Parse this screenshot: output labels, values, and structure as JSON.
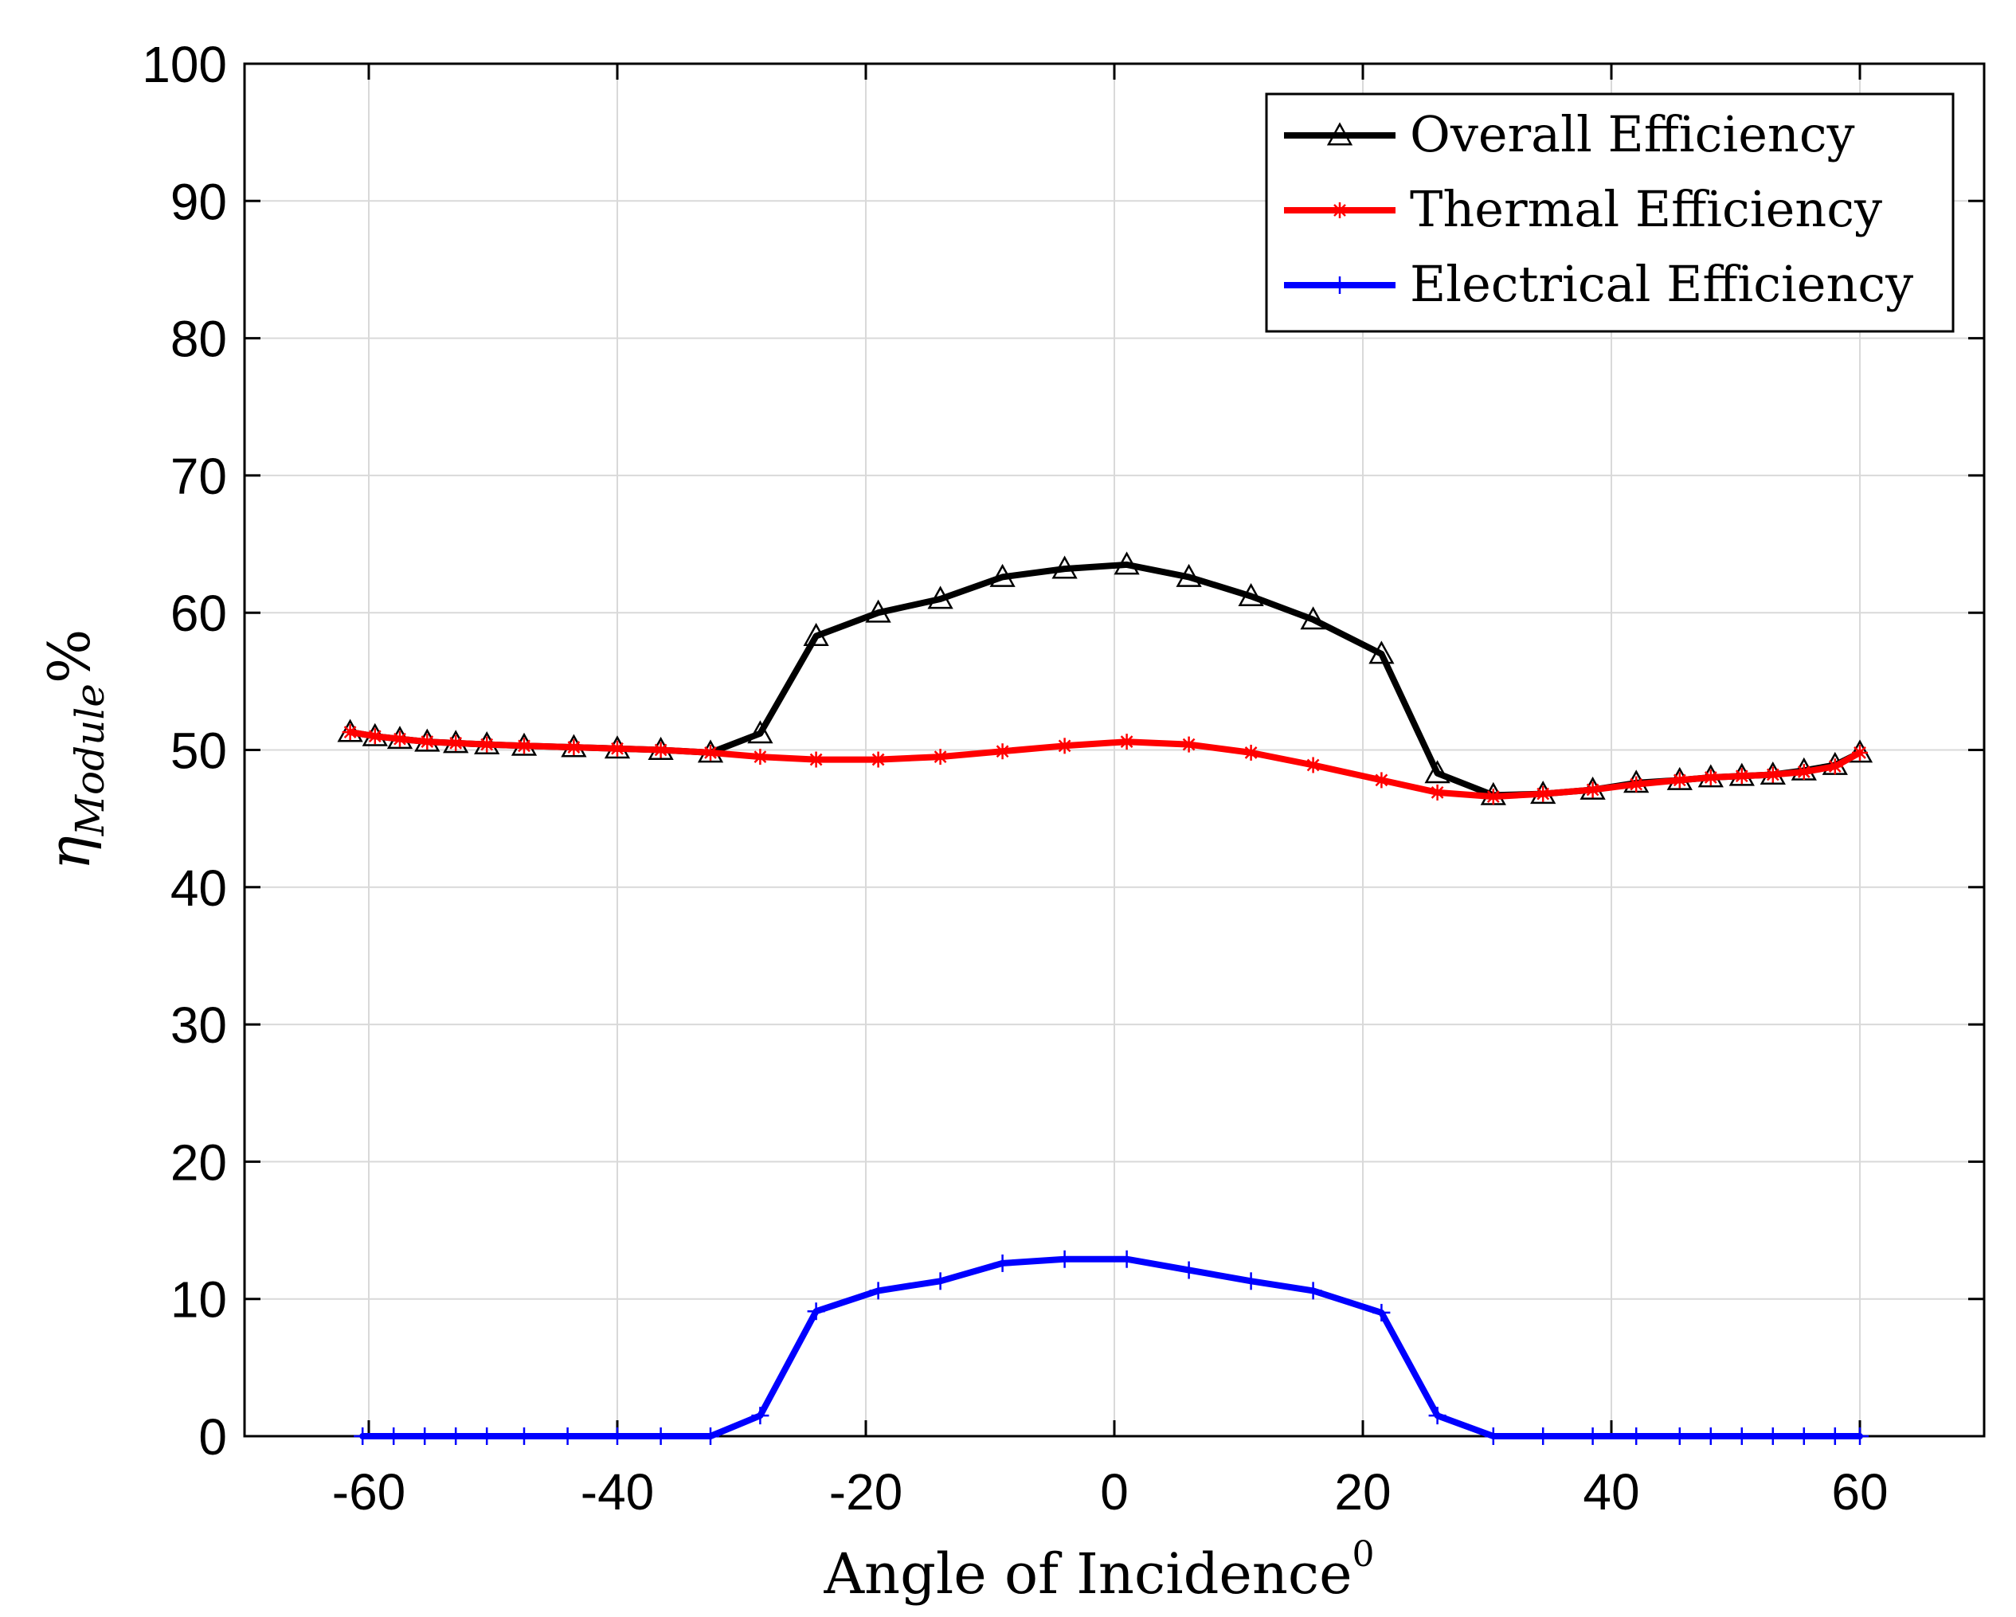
{
  "chart_data": {
    "type": "line",
    "title": "",
    "xlabel": "Angle of Incidence",
    "xlabel_superscript": "0",
    "ylabel_symbol": "η",
    "ylabel_subscript": "Module",
    "ylabel_unit": "%",
    "xlim": [
      -70,
      70
    ],
    "ylim": [
      0,
      100
    ],
    "xticks": [
      -60,
      -40,
      -20,
      0,
      20,
      40,
      60
    ],
    "yticks": [
      0,
      10,
      20,
      30,
      40,
      50,
      60,
      70,
      80,
      90,
      100
    ],
    "grid": true,
    "legend_position": "top-right",
    "series": [
      {
        "name": "Overall Efficiency",
        "color": "#000000",
        "marker": "triangle",
        "x": [
          -61.5,
          -59.5,
          -57.5,
          -55.3,
          -53,
          -50.5,
          -47.5,
          -43.5,
          -40,
          -36.5,
          -32.5,
          -28.5,
          -24,
          -19,
          -14,
          -9,
          -4,
          1,
          6,
          11,
          16,
          21.5,
          26,
          30.5,
          34.5,
          38.5,
          42,
          45.5,
          48,
          50.5,
          53,
          55.5,
          58,
          60
        ],
        "y": [
          51.3,
          51,
          50.8,
          50.6,
          50.5,
          50.4,
          50.3,
          50.2,
          50.1,
          50,
          49.8,
          51.2,
          58.3,
          60,
          61,
          62.6,
          63.2,
          63.5,
          62.6,
          61.2,
          59.5,
          57,
          48.3,
          46.7,
          46.8,
          47.1,
          47.6,
          47.8,
          48,
          48.1,
          48.2,
          48.5,
          48.9,
          49.8
        ]
      },
      {
        "name": "Thermal Efficiency",
        "color": "#ff0000",
        "marker": "asterisk",
        "x": [
          -61.5,
          -59.5,
          -57.5,
          -55.3,
          -53,
          -50.5,
          -47.5,
          -43.5,
          -40,
          -36.5,
          -32.5,
          -28.5,
          -24,
          -19,
          -14,
          -9,
          -4,
          1,
          6,
          11,
          16,
          21.5,
          26,
          30.5,
          34.5,
          38.5,
          42,
          45.5,
          48,
          50.5,
          53,
          55.5,
          58,
          60
        ],
        "y": [
          51.3,
          51,
          50.8,
          50.6,
          50.5,
          50.4,
          50.3,
          50.2,
          50.1,
          50,
          49.8,
          49.5,
          49.3,
          49.3,
          49.5,
          49.9,
          50.3,
          50.6,
          50.4,
          49.8,
          48.9,
          47.8,
          46.9,
          46.6,
          46.8,
          47.1,
          47.5,
          47.8,
          48,
          48.1,
          48.2,
          48.4,
          48.8,
          49.8
        ]
      },
      {
        "name": "Electrical Efficiency",
        "color": "#0000ff",
        "marker": "plus",
        "x": [
          -60.5,
          -58,
          -55.5,
          -53,
          -50.5,
          -47.5,
          -44,
          -40,
          -36.5,
          -32.5,
          -28.5,
          -24,
          -19,
          -14,
          -9,
          -4,
          1,
          6,
          11,
          16,
          21.5,
          26,
          30.5,
          34.5,
          38.5,
          42,
          45.5,
          48,
          50.5,
          53,
          55.5,
          58,
          60
        ],
        "y": [
          0,
          0,
          0,
          0,
          0,
          0,
          0,
          0,
          0,
          0,
          1.5,
          9.1,
          10.6,
          11.3,
          12.6,
          12.9,
          12.9,
          12.1,
          11.3,
          10.6,
          9,
          1.5,
          0,
          0,
          0,
          0,
          0,
          0,
          0,
          0,
          0,
          0,
          0
        ]
      }
    ]
  }
}
